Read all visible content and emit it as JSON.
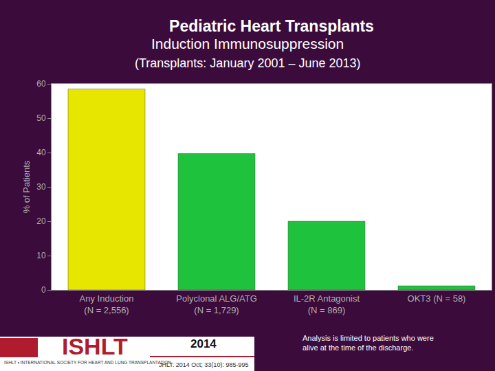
{
  "chart_data": {
    "type": "bar",
    "title": "Pediatric Heart Transplants",
    "subtitle": [
      "Induction Immunosuppression",
      "(Transplants: January 2001 – June 2013)"
    ],
    "y_label": "% of Patients",
    "categories": [
      "Any Induction\n(N = 2,556)",
      "Polyclonal ALG/ATG\n(N = 1,729)",
      "IL-2R Antagonist\n(N = 869)",
      "OKT3 (N = 58)"
    ],
    "values": [
      58.5,
      39.7,
      20,
      1.2
    ],
    "colors": [
      "#e6e600",
      "#1ec23c",
      "#1ec23c",
      "#1ec23c"
    ],
    "ylim": [
      0,
      60
    ],
    "yticks": [
      0,
      10,
      20,
      30,
      40,
      50,
      60
    ],
    "grid": false,
    "footnote": "Analysis is limited to patients who were\nalive at the time of the discharge.",
    "source": {
      "logo": "ISHLT",
      "logo_caption": "ISHLT • INTERNATIONAL SOCIETY FOR HEART AND LUNG TRANSPLANTATION",
      "year": "2014",
      "citation": "JHLT. 2014 Oct; 33(10): 985-995"
    }
  }
}
